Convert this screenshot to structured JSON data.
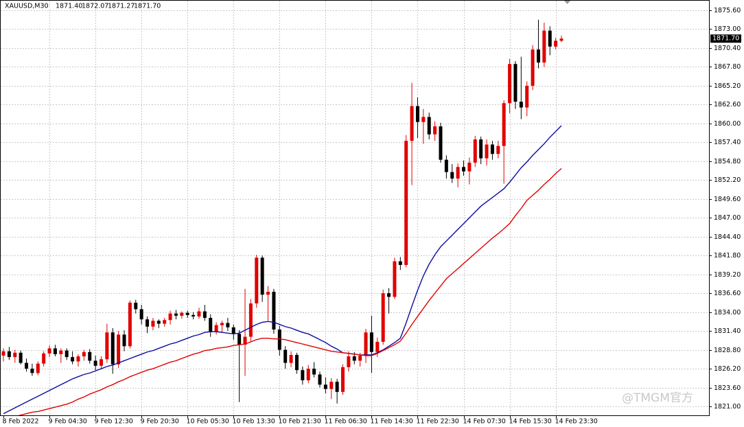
{
  "chart_data": {
    "type": "candlestick",
    "title": "XAUUSD,M30",
    "quote": [
      "1871.40",
      "1872.07",
      "1871.27",
      "1871.70"
    ],
    "watermark": "@TMGM官方",
    "ylim": [
      1819.77,
      1877.02
    ],
    "yticks": [
      {
        "value": 1875.6,
        "label": "1875.60"
      },
      {
        "value": 1873.0,
        "label": "1873.00"
      },
      {
        "value": 1870.4,
        "label": "1870.40"
      },
      {
        "value": 1867.8,
        "label": "1867.80"
      },
      {
        "value": 1865.2,
        "label": "1865.20"
      },
      {
        "value": 1862.6,
        "label": "1862.60"
      },
      {
        "value": 1860.0,
        "label": "1860.00"
      },
      {
        "value": 1857.4,
        "label": "1857.40"
      },
      {
        "value": 1854.8,
        "label": "1854.80"
      },
      {
        "value": 1852.2,
        "label": "1852.20"
      },
      {
        "value": 1849.6,
        "label": "1849.60"
      },
      {
        "value": 1847.0,
        "label": "1847.00"
      },
      {
        "value": 1844.4,
        "label": "1844.40"
      },
      {
        "value": 1841.8,
        "label": "1841.80"
      },
      {
        "value": 1839.2,
        "label": "1839.20"
      },
      {
        "value": 1836.6,
        "label": "1836.60"
      },
      {
        "value": 1834.0,
        "label": "1834.00"
      },
      {
        "value": 1831.4,
        "label": "1831.40"
      },
      {
        "value": 1828.8,
        "label": "1828.80"
      },
      {
        "value": 1826.2,
        "label": "1826.20"
      },
      {
        "value": 1823.6,
        "label": "1823.60"
      },
      {
        "value": 1821.0,
        "label": "1821.00"
      }
    ],
    "price_marker": {
      "value": 1871.7,
      "label": "1871.70"
    },
    "grid": true,
    "up_color": "#e00000",
    "down_color": "#000000",
    "categories": [
      "8 Feb 2022",
      null,
      null,
      null,
      null,
      null,
      null,
      null,
      "9 Feb 04:30",
      null,
      null,
      null,
      null,
      null,
      null,
      null,
      "9 Feb 12:30",
      null,
      null,
      null,
      null,
      null,
      null,
      null,
      "9 Feb 20:30",
      null,
      null,
      null,
      null,
      null,
      null,
      null,
      "10 Feb 05:30",
      null,
      null,
      null,
      null,
      null,
      null,
      null,
      "10 Feb 13:30",
      null,
      null,
      null,
      null,
      null,
      null,
      null,
      "10 Feb 21:30",
      null,
      null,
      null,
      null,
      null,
      null,
      null,
      "11 Feb 06:30",
      null,
      null,
      null,
      null,
      null,
      null,
      null,
      "11 Feb 14:30",
      null,
      null,
      null,
      null,
      null,
      null,
      null,
      "11 Feb 22:30",
      null,
      null,
      null,
      null,
      null,
      null,
      null,
      "14 Feb 07:30",
      null,
      null,
      null,
      null,
      null,
      null,
      null,
      "14 Feb 15:30",
      null,
      null,
      null,
      null,
      null,
      null,
      null,
      "14 Feb 23:30",
      null
    ],
    "ohlc": [
      [
        1828.0,
        1829.0,
        1827.2,
        1828.6
      ],
      [
        1828.6,
        1829.2,
        1827.4,
        1827.8
      ],
      [
        1827.8,
        1828.8,
        1827.0,
        1828.4
      ],
      [
        1828.4,
        1828.7,
        1826.8,
        1827.0
      ],
      [
        1827.0,
        1827.6,
        1825.8,
        1826.2
      ],
      [
        1826.2,
        1826.9,
        1825.2,
        1825.6
      ],
      [
        1825.6,
        1827.2,
        1825.3,
        1826.9
      ],
      [
        1826.9,
        1828.6,
        1826.5,
        1828.3
      ],
      [
        1828.3,
        1829.4,
        1827.8,
        1829.0
      ],
      [
        1829.0,
        1829.5,
        1827.9,
        1828.2
      ],
      [
        1828.2,
        1829.0,
        1827.0,
        1828.7
      ],
      [
        1828.7,
        1829.0,
        1827.4,
        1827.8
      ],
      [
        1827.8,
        1828.6,
        1826.8,
        1827.2
      ],
      [
        1827.2,
        1828.2,
        1826.5,
        1827.9
      ],
      [
        1827.9,
        1828.8,
        1827.3,
        1828.5
      ],
      [
        1828.5,
        1828.9,
        1826.9,
        1827.3
      ],
      [
        1827.3,
        1828.0,
        1826.0,
        1826.6
      ],
      [
        1826.6,
        1827.9,
        1826.1,
        1827.5
      ],
      [
        1827.5,
        1832.4,
        1827.0,
        1831.2
      ],
      [
        1831.2,
        1831.8,
        1825.5,
        1826.8
      ],
      [
        1826.8,
        1831.4,
        1826.3,
        1830.9
      ],
      [
        1830.9,
        1831.5,
        1828.6,
        1829.3
      ],
      [
        1829.3,
        1835.6,
        1829.0,
        1835.3
      ],
      [
        1835.3,
        1835.7,
        1833.8,
        1834.4
      ],
      [
        1834.4,
        1835.0,
        1832.3,
        1833.0
      ],
      [
        1833.0,
        1833.4,
        1831.1,
        1832.0
      ],
      [
        1832.0,
        1833.2,
        1831.5,
        1832.8
      ],
      [
        1832.8,
        1833.0,
        1831.8,
        1832.4
      ],
      [
        1832.4,
        1833.2,
        1832.0,
        1832.9
      ],
      [
        1832.9,
        1834.2,
        1832.3,
        1833.8
      ],
      [
        1833.8,
        1834.3,
        1833.0,
        1833.5
      ],
      [
        1833.5,
        1834.1,
        1833.1,
        1833.9
      ],
      [
        1833.9,
        1834.2,
        1833.2,
        1833.6
      ],
      [
        1833.6,
        1834.0,
        1833.0,
        1833.4
      ],
      [
        1833.4,
        1834.6,
        1833.1,
        1834.1
      ],
      [
        1834.1,
        1835.0,
        1832.8,
        1833.2
      ],
      [
        1833.2,
        1833.7,
        1830.6,
        1831.3
      ],
      [
        1831.3,
        1832.6,
        1830.9,
        1832.2
      ],
      [
        1832.2,
        1832.8,
        1831.2,
        1832.5
      ],
      [
        1832.5,
        1833.2,
        1831.4,
        1831.9
      ],
      [
        1831.9,
        1832.3,
        1830.2,
        1831.0
      ],
      [
        1831.0,
        1831.5,
        1821.6,
        1829.5
      ],
      [
        1829.5,
        1837.2,
        1825.2,
        1830.6
      ],
      [
        1830.6,
        1835.8,
        1830.0,
        1835.2
      ],
      [
        1835.2,
        1841.9,
        1834.6,
        1841.5
      ],
      [
        1841.5,
        1841.8,
        1835.4,
        1836.4
      ],
      [
        1836.4,
        1837.6,
        1832.8,
        1836.8
      ],
      [
        1836.8,
        1837.2,
        1831.0,
        1831.6
      ],
      [
        1831.6,
        1832.1,
        1828.0,
        1828.8
      ],
      [
        1828.8,
        1829.3,
        1826.2,
        1827.0
      ],
      [
        1827.0,
        1828.6,
        1826.4,
        1828.1
      ],
      [
        1828.1,
        1828.4,
        1825.5,
        1826.0
      ],
      [
        1826.0,
        1826.5,
        1824.0,
        1824.6
      ],
      [
        1824.6,
        1826.7,
        1824.2,
        1826.2
      ],
      [
        1826.2,
        1827.1,
        1825.0,
        1825.4
      ],
      [
        1825.4,
        1825.8,
        1823.6,
        1824.0
      ],
      [
        1824.0,
        1825.0,
        1822.8,
        1823.4
      ],
      [
        1823.4,
        1824.9,
        1822.0,
        1824.4
      ],
      [
        1824.4,
        1824.8,
        1821.4,
        1823.0
      ],
      [
        1823.0,
        1826.8,
        1822.6,
        1826.4
      ],
      [
        1826.4,
        1828.6,
        1825.8,
        1827.9
      ],
      [
        1827.9,
        1828.5,
        1826.8,
        1827.3
      ],
      [
        1827.3,
        1828.4,
        1826.5,
        1828.0
      ],
      [
        1828.0,
        1831.7,
        1827.0,
        1831.2
      ],
      [
        1831.2,
        1833.5,
        1825.6,
        1828.5
      ],
      [
        1828.5,
        1830.5,
        1827.8,
        1829.9
      ],
      [
        1829.9,
        1837.1,
        1829.5,
        1836.6
      ],
      [
        1836.6,
        1837.3,
        1833.8,
        1836.1
      ],
      [
        1836.1,
        1841.5,
        1835.8,
        1841.0
      ],
      [
        1841.0,
        1841.6,
        1839.8,
        1840.5
      ],
      [
        1840.5,
        1858.4,
        1840.2,
        1857.6
      ],
      [
        1857.6,
        1865.6,
        1851.5,
        1862.4
      ],
      [
        1862.4,
        1863.6,
        1858.0,
        1860.2
      ],
      [
        1860.2,
        1862.0,
        1857.2,
        1860.9
      ],
      [
        1860.9,
        1861.5,
        1857.8,
        1858.5
      ],
      [
        1858.5,
        1860.3,
        1857.6,
        1859.6
      ],
      [
        1859.6,
        1860.1,
        1854.6,
        1855.0
      ],
      [
        1855.0,
        1855.6,
        1852.4,
        1853.3
      ],
      [
        1853.3,
        1854.4,
        1851.8,
        1852.4
      ],
      [
        1852.4,
        1854.5,
        1851.2,
        1854.0
      ],
      [
        1854.0,
        1854.9,
        1852.8,
        1853.4
      ],
      [
        1853.4,
        1855.3,
        1851.6,
        1854.6
      ],
      [
        1854.6,
        1858.3,
        1854.0,
        1857.8
      ],
      [
        1857.8,
        1858.2,
        1854.4,
        1855.2
      ],
      [
        1855.2,
        1857.8,
        1854.2,
        1857.1
      ],
      [
        1857.1,
        1857.6,
        1855.0,
        1855.8
      ],
      [
        1855.8,
        1857.6,
        1855.2,
        1856.9
      ],
      [
        1856.9,
        1863.2,
        1851.7,
        1862.8
      ],
      [
        1862.8,
        1868.9,
        1861.4,
        1868.2
      ],
      [
        1868.2,
        1868.6,
        1862.0,
        1863.0
      ],
      [
        1863.0,
        1869.2,
        1860.6,
        1862.2
      ],
      [
        1862.2,
        1865.8,
        1861.0,
        1865.2
      ],
      [
        1865.2,
        1870.8,
        1864.6,
        1870.2
      ],
      [
        1870.2,
        1874.3,
        1867.6,
        1868.4
      ],
      [
        1868.4,
        1873.9,
        1867.8,
        1872.8
      ],
      [
        1872.8,
        1873.4,
        1869.4,
        1870.6
      ],
      [
        1870.6,
        1871.8,
        1870.2,
        1871.4
      ],
      [
        1871.4,
        1872.1,
        1871.2,
        1871.7
      ]
    ],
    "overlays": [
      {
        "color": "#0a0aa0",
        "values": [
          1820.0,
          1820.4,
          1820.8,
          1821.2,
          1821.6,
          1822.0,
          1822.4,
          1822.8,
          1823.2,
          1823.6,
          1824.0,
          1824.4,
          1824.8,
          1825.1,
          1825.4,
          1825.6,
          1825.9,
          1826.2,
          1826.5,
          1826.7,
          1827.0,
          1827.3,
          1827.6,
          1827.9,
          1828.2,
          1828.5,
          1828.7,
          1829.0,
          1829.3,
          1829.6,
          1829.8,
          1830.1,
          1830.4,
          1830.7,
          1830.9,
          1831.2,
          1831.3,
          1831.3,
          1831.2,
          1831.1,
          1831.0,
          1831.1,
          1831.5,
          1831.9,
          1832.3,
          1832.6,
          1832.7,
          1832.6,
          1832.3,
          1832.0,
          1831.8,
          1831.5,
          1831.2,
          1831.0,
          1830.6,
          1830.2,
          1829.8,
          1829.3,
          1828.9,
          1828.4,
          1828.3,
          1828.2,
          1828.1,
          1828.1,
          1828.1,
          1828.4,
          1828.8,
          1829.3,
          1829.8,
          1830.4,
          1832.5,
          1834.8,
          1837.0,
          1839.0,
          1840.6,
          1841.9,
          1843.0,
          1843.8,
          1844.6,
          1845.4,
          1846.2,
          1847.0,
          1847.8,
          1848.6,
          1849.2,
          1849.8,
          1850.4,
          1851.0,
          1851.9,
          1852.9,
          1853.9,
          1854.7,
          1855.6,
          1856.4,
          1857.2,
          1858.1,
          1858.9,
          1859.7
        ]
      },
      {
        "color": "#e00000",
        "values": [
          1819.2,
          1819.4,
          1819.6,
          1819.8,
          1820.0,
          1820.2,
          1820.3,
          1820.5,
          1820.7,
          1820.9,
          1821.1,
          1821.3,
          1821.6,
          1822.0,
          1822.3,
          1822.7,
          1823.0,
          1823.3,
          1823.7,
          1824.0,
          1824.4,
          1824.7,
          1825.1,
          1825.4,
          1825.7,
          1826.0,
          1826.2,
          1826.5,
          1826.8,
          1827.1,
          1827.3,
          1827.6,
          1827.9,
          1828.2,
          1828.4,
          1828.7,
          1828.8,
          1829.0,
          1829.1,
          1829.2,
          1829.4,
          1829.5,
          1829.6,
          1829.9,
          1830.2,
          1830.4,
          1830.4,
          1830.3,
          1830.3,
          1830.2,
          1830.0,
          1829.8,
          1829.6,
          1829.4,
          1829.2,
          1829.0,
          1828.8,
          1828.6,
          1828.5,
          1828.4,
          1828.3,
          1828.2,
          1828.1,
          1828.0,
          1828.0,
          1828.3,
          1828.7,
          1829.1,
          1829.5,
          1830.0,
          1831.1,
          1832.3,
          1833.4,
          1834.5,
          1835.6,
          1836.6,
          1837.6,
          1838.6,
          1839.3,
          1840.0,
          1840.7,
          1841.4,
          1842.1,
          1842.8,
          1843.5,
          1844.2,
          1844.8,
          1845.5,
          1846.2,
          1847.3,
          1848.3,
          1849.4,
          1850.1,
          1850.8,
          1851.6,
          1852.3,
          1853.1,
          1853.8
        ]
      }
    ]
  }
}
